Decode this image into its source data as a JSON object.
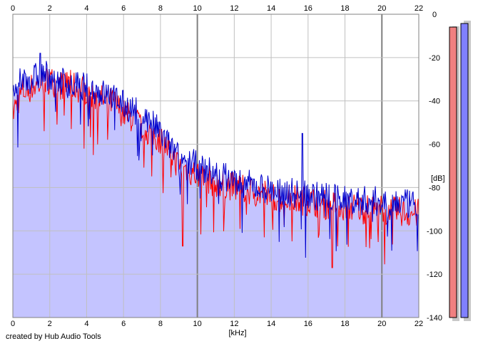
{
  "chart_data": {
    "type": "line",
    "title": "",
    "xlabel": "[kHz]",
    "ylabel": "[dB]",
    "xlim": [
      0,
      22
    ],
    "ylim": [
      -140,
      0
    ],
    "x_ticks": [
      0,
      2,
      4,
      6,
      8,
      10,
      12,
      14,
      16,
      18,
      20,
      22
    ],
    "y_ticks": [
      0,
      -20,
      -40,
      -60,
      -80,
      -100,
      -120,
      -140
    ],
    "grid": true,
    "colors": {
      "background": "#ffffff",
      "grid": "#c0c0c0",
      "major_grid": "#808080",
      "fill": "#c4c4ff",
      "left_channel": "#ff0000",
      "right_channel": "#0000cc",
      "meter_left": "#f08080",
      "meter_right": "#8080ff"
    },
    "series": [
      {
        "color": "#ff0000",
        "x": [
          0,
          0.5,
          1,
          1.5,
          2,
          2.5,
          3,
          3.5,
          4,
          4.5,
          5,
          5.5,
          6,
          6.5,
          7,
          7.5,
          8,
          8.5,
          9,
          9.5,
          10,
          10.5,
          11,
          11.5,
          12,
          12.5,
          13,
          13.5,
          14,
          14.5,
          15,
          15.5,
          16,
          16.5,
          17,
          17.5,
          18,
          18.5,
          19,
          19.5,
          20,
          20.5,
          21,
          21.5,
          22
        ],
        "values": [
          -45,
          -36,
          -34,
          -32,
          -30,
          -33,
          -32,
          -34,
          -35,
          -38,
          -40,
          -41,
          -46,
          -48,
          -52,
          -55,
          -58,
          -63,
          -70,
          -72,
          -74,
          -76,
          -78,
          -78,
          -80,
          -81,
          -82,
          -83,
          -84,
          -85,
          -85,
          -86,
          -86,
          -87,
          -88,
          -88,
          -89,
          -89,
          -90,
          -90,
          -90,
          -91,
          -91,
          -92,
          -92
        ]
      },
      {
        "color": "#0000cc",
        "x": [
          0,
          0.5,
          1,
          1.5,
          2,
          2.5,
          3,
          3.5,
          4,
          4.5,
          5,
          5.5,
          6,
          6.5,
          7,
          7.5,
          8,
          8.5,
          9,
          9.5,
          10,
          10.5,
          11,
          11.5,
          12,
          12.5,
          13,
          13.5,
          14,
          14.5,
          15,
          15.5,
          16,
          16.5,
          17,
          17.5,
          18,
          18.5,
          19,
          19.5,
          20,
          20.5,
          21,
          21.5,
          22
        ],
        "values": [
          -38,
          -30,
          -30,
          -28,
          -28,
          -30,
          -32,
          -33,
          -34,
          -35,
          -37,
          -38,
          -42,
          -44,
          -47,
          -50,
          -55,
          -61,
          -66,
          -68,
          -70,
          -72,
          -74,
          -75,
          -77,
          -78,
          -79,
          -80,
          -81,
          -82,
          -82,
          -83,
          -83,
          -84,
          -84,
          -85,
          -85,
          -86,
          -86,
          -86,
          -87,
          -87,
          -87,
          -88,
          -88
        ]
      }
    ],
    "peaks": [
      {
        "x": 1.5,
        "y": -18
      },
      {
        "x": 15.7,
        "y": -55
      },
      {
        "x": 9.2,
        "y": -107
      },
      {
        "x": 17.3,
        "y": -117
      }
    ],
    "meter": {
      "left_level": 0.97,
      "right_level": 0.98
    }
  },
  "credit": "created by Hub Audio Tools"
}
